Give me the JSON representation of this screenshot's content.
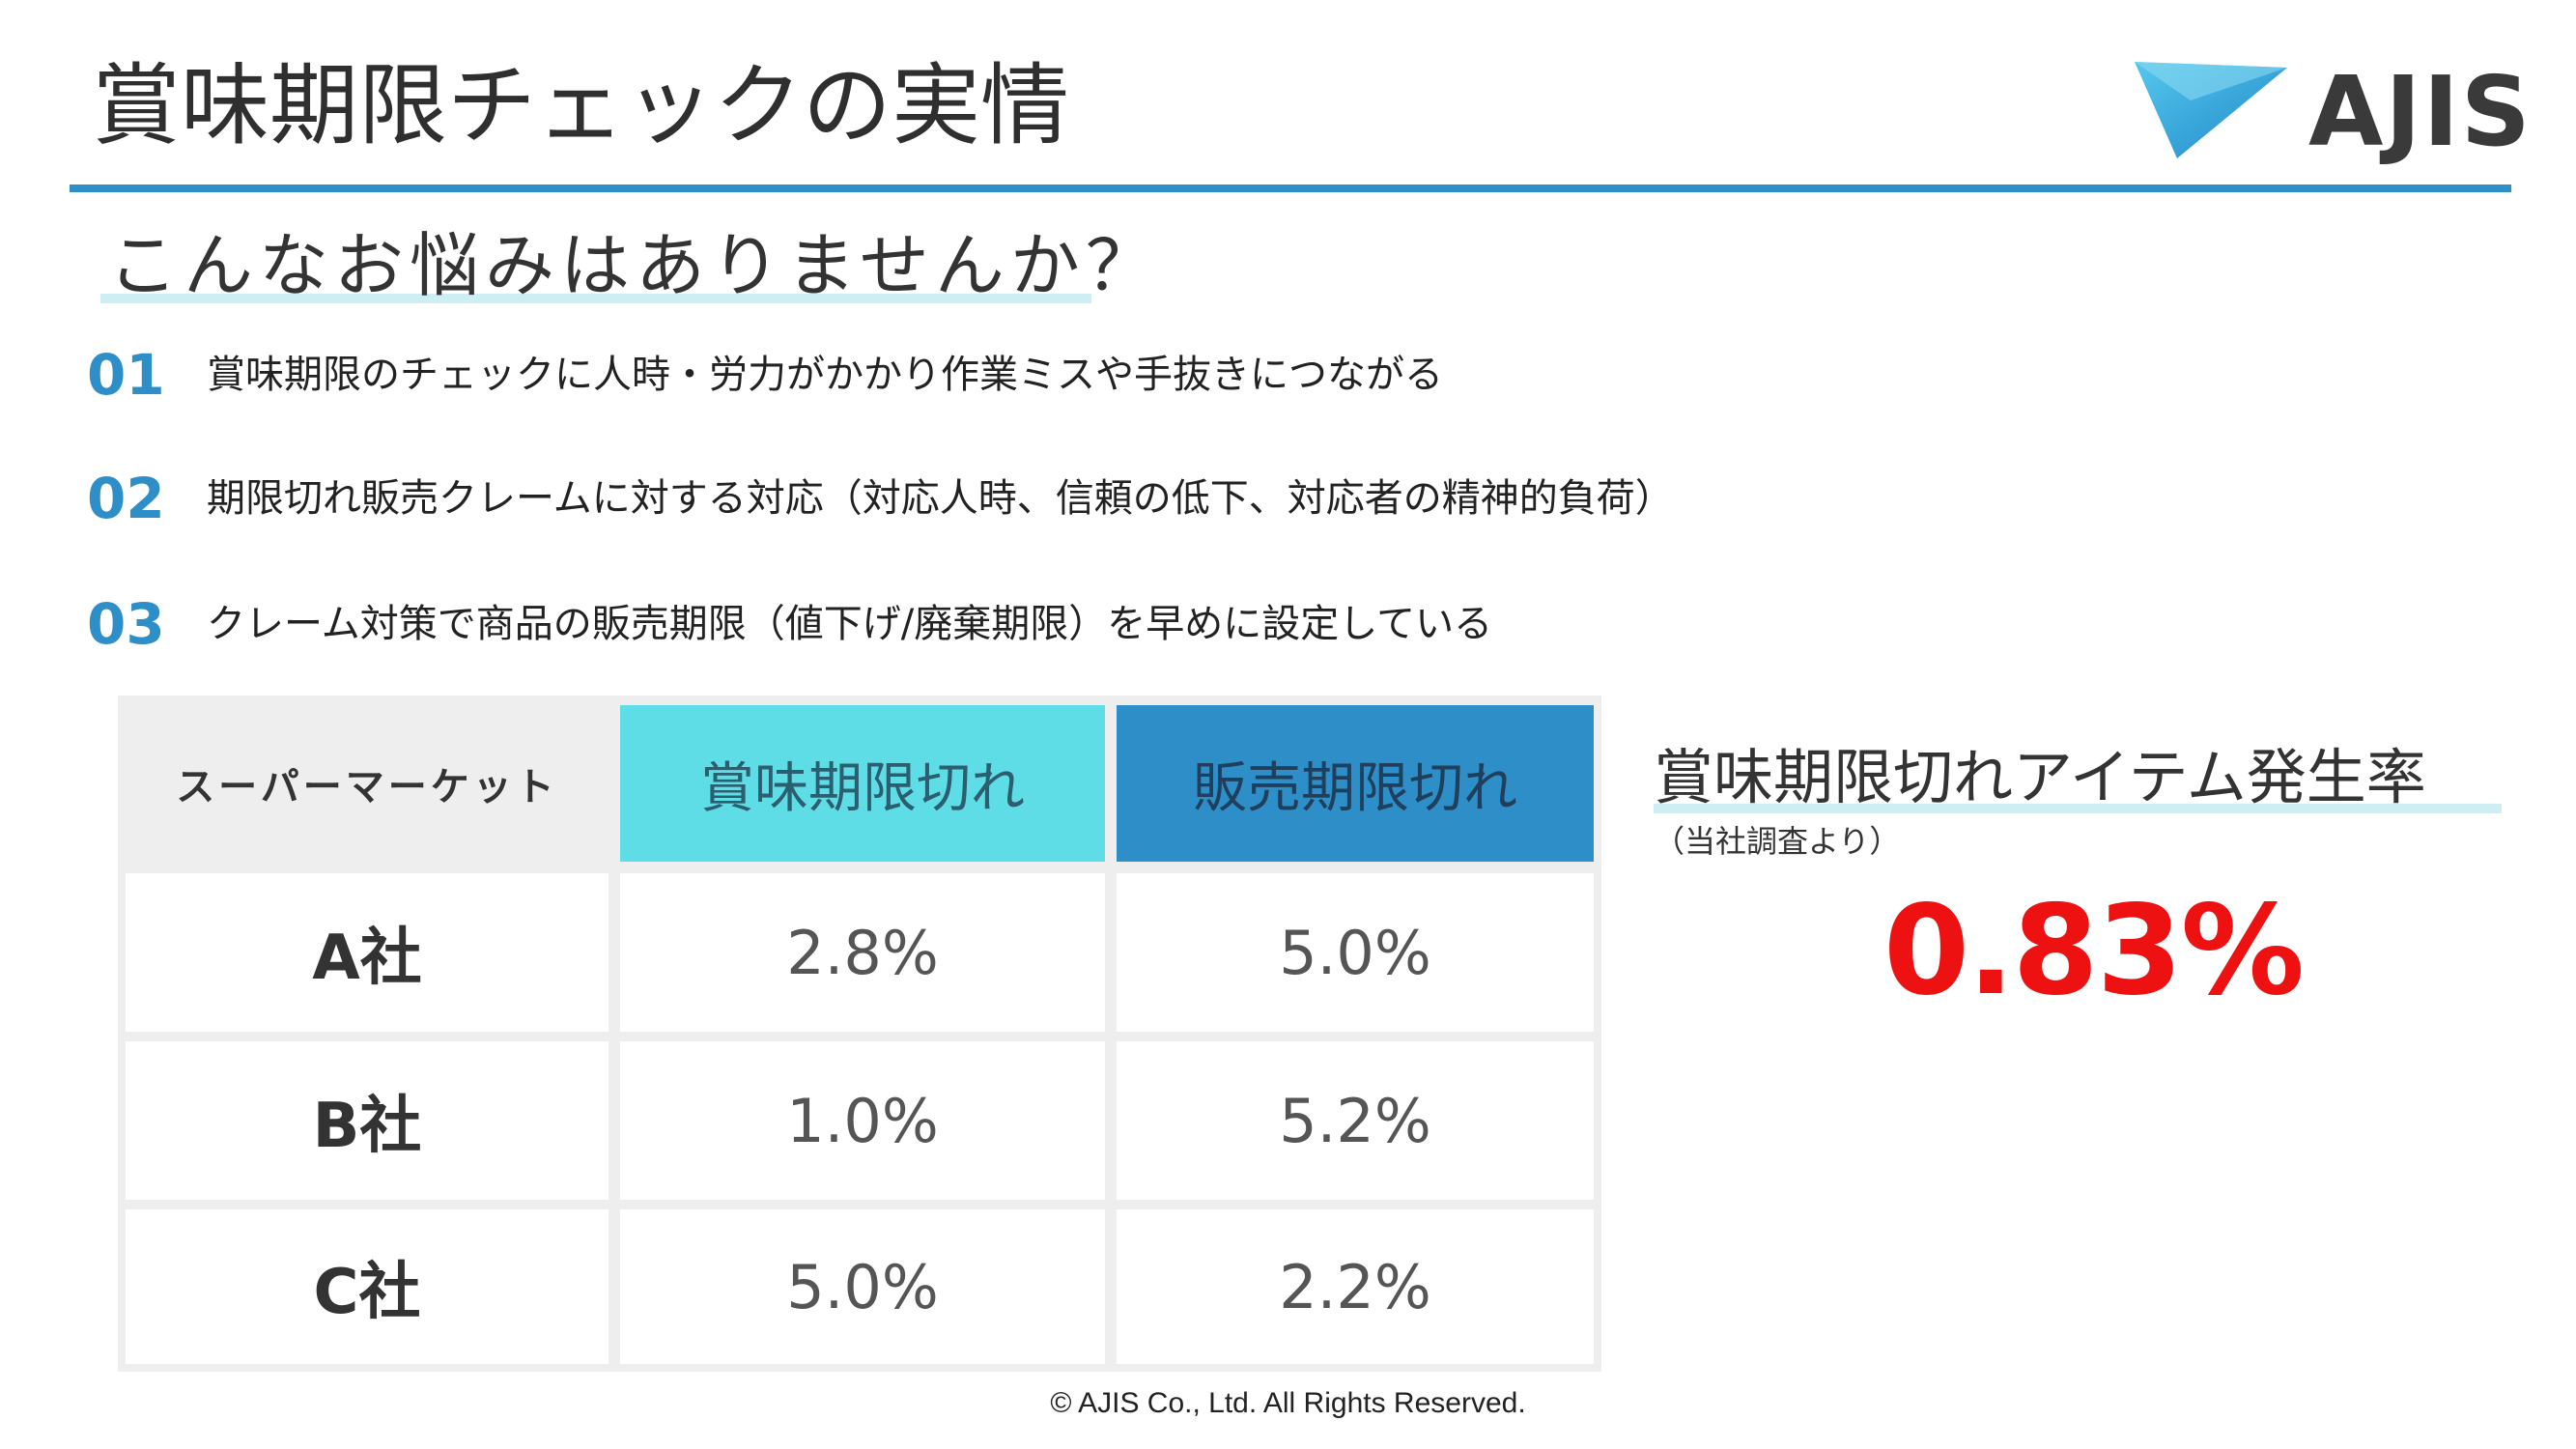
{
  "header": {
    "title": "賞味期限チェックの実情",
    "logo_text": "AJIS"
  },
  "subtitle": "こんなお悩みはありませんか？",
  "issues": [
    {
      "num": "01",
      "text": "賞味期限のチェックに人時・労力がかかり作業ミスや手抜きにつながる"
    },
    {
      "num": "02",
      "text": "期限切れ販売クレームに対する対応（対応人時、信頼の低下、対応者の精神的負荷）"
    },
    {
      "num": "03",
      "text": "クレーム対策で商品の販売期限（値下げ/廃棄期限）を早めに設定している"
    }
  ],
  "table": {
    "headers": [
      "スーパーマーケット",
      "賞味期限切れ",
      "販売期限切れ"
    ],
    "rows": [
      {
        "label": "A社",
        "best_before": "2.8%",
        "sell_by": "5.0%"
      },
      {
        "label": "B社",
        "best_before": "1.0%",
        "sell_by": "5.2%"
      },
      {
        "label": "C社",
        "best_before": "5.0%",
        "sell_by": "2.2%"
      }
    ]
  },
  "rate": {
    "title": "賞味期限切れアイテム発生率",
    "source": "（当社調査より）",
    "value": "0.83%"
  },
  "copyright": "© AJIS Co., Ltd. All Rights Reserved.",
  "colors": {
    "accent_blue": "#2e8fc8",
    "accent_cyan": "#5fdde6",
    "highlight_red": "#ee1111",
    "underline_tint": "#cdeff3"
  }
}
